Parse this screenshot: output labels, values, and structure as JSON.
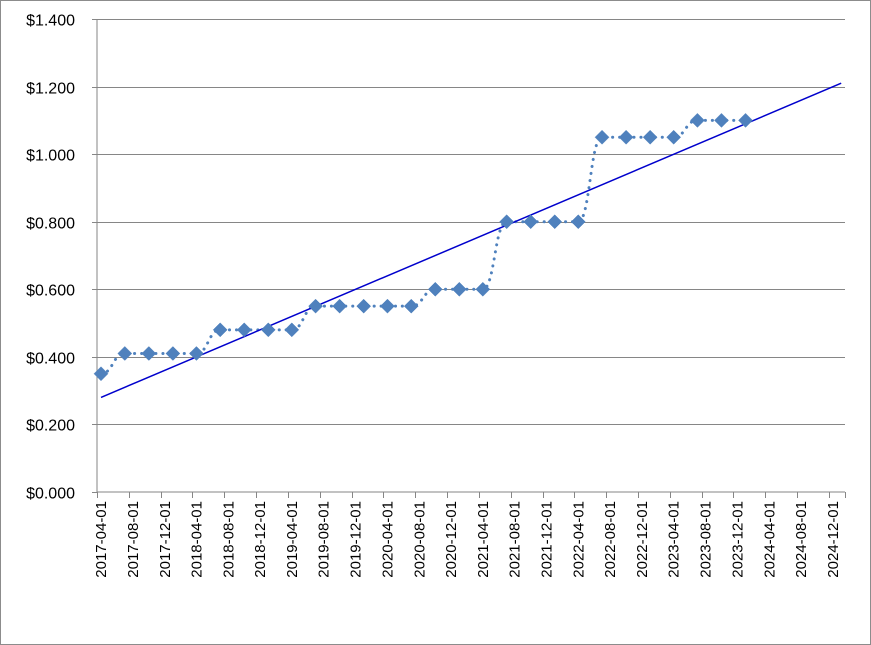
{
  "chart_data": {
    "type": "line",
    "title": "",
    "xlabel": "",
    "ylabel": "",
    "ylim": [
      0,
      1.4
    ],
    "y_ticks": [
      "$0.000",
      "$0.200",
      "$0.400",
      "$0.600",
      "$0.800",
      "$1.000",
      "$1.200",
      "$1.400"
    ],
    "y_tick_values": [
      0,
      0.2,
      0.4,
      0.6,
      0.8,
      1.0,
      1.2,
      1.4
    ],
    "x_ticks": [
      "2017-04-01",
      "2017-08-01",
      "2017-12-01",
      "2018-04-01",
      "2018-08-01",
      "2018-12-01",
      "2019-04-01",
      "2019-08-01",
      "2019-12-01",
      "2020-04-01",
      "2020-08-01",
      "2020-12-01",
      "2021-04-01",
      "2021-08-01",
      "2021-12-01",
      "2022-04-01",
      "2022-08-01",
      "2022-12-01",
      "2023-04-01",
      "2023-08-01",
      "2023-12-01",
      "2024-04-01",
      "2024-08-01",
      "2024-12-01"
    ],
    "grid": true,
    "legend": "none",
    "series": [
      {
        "style": "dotted-with-diamond-markers",
        "color": "#4f81bd",
        "x": [
          "2017-04-01",
          "2017-07-01",
          "2017-10-01",
          "2018-01-01",
          "2018-04-01",
          "2018-07-01",
          "2018-10-01",
          "2019-01-01",
          "2019-04-01",
          "2019-07-01",
          "2019-10-01",
          "2020-01-01",
          "2020-04-01",
          "2020-07-01",
          "2020-10-01",
          "2021-01-01",
          "2021-04-01",
          "2021-07-01",
          "2021-10-01",
          "2022-01-01",
          "2022-04-01",
          "2022-07-01",
          "2022-10-01",
          "2023-01-01",
          "2023-04-01",
          "2023-07-01",
          "2023-10-01",
          "2024-01-01"
        ],
        "values": [
          0.35,
          0.41,
          0.41,
          0.41,
          0.41,
          0.48,
          0.48,
          0.48,
          0.48,
          0.55,
          0.55,
          0.55,
          0.55,
          0.55,
          0.6,
          0.6,
          0.6,
          0.8,
          0.8,
          0.8,
          0.8,
          1.05,
          1.05,
          1.05,
          1.05,
          1.1,
          1.1,
          1.1
        ]
      },
      {
        "style": "linear-trendline",
        "color": "#0000cc",
        "x": [
          "2017-04-01",
          "2025-01-01"
        ],
        "values": [
          0.28,
          1.21
        ]
      }
    ]
  }
}
